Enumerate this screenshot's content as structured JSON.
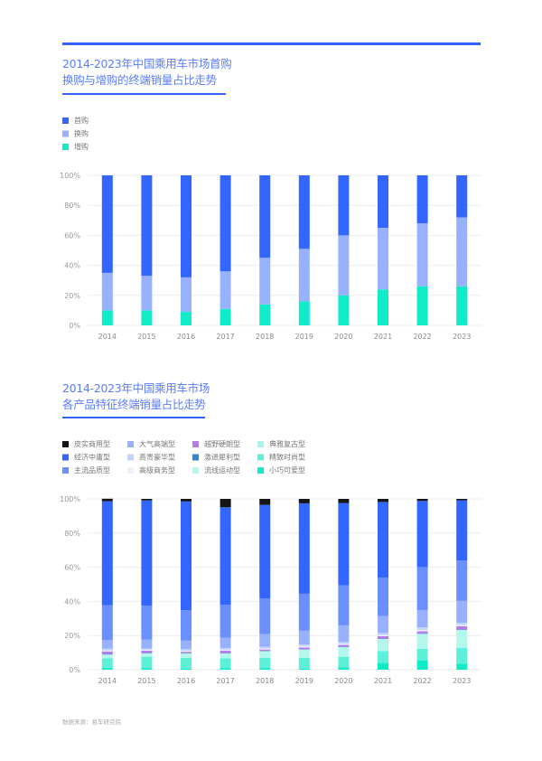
{
  "chart_data": [
    {
      "type": "bar",
      "stacked": true,
      "title": "2014-2023年中国乘用车市场首购换购与增购的终端销量占比走势",
      "title_lines": [
        "2014-2023年中国乘用车市场首购",
        "换购与增购的终端销量占比走势"
      ],
      "categories": [
        "2014",
        "2015",
        "2016",
        "2017",
        "2018",
        "2019",
        "2020",
        "2021",
        "2022",
        "2023"
      ],
      "ylim": [
        0,
        100
      ],
      "yticks": [
        "0%",
        "20%",
        "40%",
        "60%",
        "80%",
        "100%"
      ],
      "grid": true,
      "legend_position": "top-left",
      "series": [
        {
          "name": "增购",
          "color": "#10ecc8",
          "values": [
            10,
            10,
            9,
            11,
            14,
            16,
            20,
            24,
            26,
            26
          ]
        },
        {
          "name": "换购",
          "color": "#98b1ff",
          "values": [
            25,
            23,
            23,
            25,
            31,
            35,
            40,
            41,
            42,
            46
          ]
        },
        {
          "name": "首购",
          "color": "#3366ff",
          "values": [
            65,
            67,
            68,
            64,
            55,
            49,
            40,
            35,
            32,
            28
          ]
        }
      ],
      "legend_order": [
        "首购",
        "换购",
        "增购"
      ]
    },
    {
      "type": "bar",
      "stacked": true,
      "title": "2014-2023年中国乘用车市场各产品特征终端销量占比走势",
      "title_lines": [
        "2014-2023年中国乘用车市场",
        "各产品特征终端销量占比走势"
      ],
      "categories": [
        "2014",
        "2015",
        "2016",
        "2017",
        "2018",
        "2019",
        "2020",
        "2021",
        "2022",
        "2023"
      ],
      "ylim": [
        0,
        100
      ],
      "yticks": [
        "0%",
        "20%",
        "40%",
        "60%",
        "80%",
        "100%"
      ],
      "grid": true,
      "legend_position": "top-left",
      "series": [
        {
          "name": "小巧可爱型",
          "color": "#10ecc8",
          "values": [
            1.2,
            1.0,
            0.7,
            1.0,
            1.0,
            0.7,
            1.3,
            4.0,
            5.5,
            3.5
          ]
        },
        {
          "name": "精致时尚型",
          "color": "#5cf0d8",
          "values": [
            5.5,
            6.6,
            6.2,
            5.6,
            6.0,
            6.3,
            6.3,
            7.0,
            6.8,
            9.3
          ]
        },
        {
          "name": "流线运动型",
          "color": "#b4f7ec",
          "values": [
            2.2,
            2.0,
            2.6,
            3.0,
            3.8,
            4.8,
            5.7,
            7.0,
            8.7,
            10.5
          ]
        },
        {
          "name": "典雅复古型",
          "color": "#a6f5e8",
          "values": [
            0,
            0,
            0,
            0,
            0,
            0,
            0,
            0,
            0,
            0
          ]
        },
        {
          "name": "激进犀利型",
          "color": "#2f88d0",
          "values": [
            0.3,
            0.2,
            0.2,
            0.2,
            0.2,
            0.2,
            0.2,
            0.2,
            0.2,
            0.2
          ]
        },
        {
          "name": "越野硬朗型",
          "color": "#b57be8",
          "values": [
            1.5,
            1.3,
            0.8,
            1.3,
            0.8,
            1.0,
            1.0,
            1.4,
            1.3,
            2.0
          ]
        },
        {
          "name": "高级商务型",
          "color": "#eef1ff",
          "values": [
            0.5,
            0.5,
            0.5,
            0.5,
            0.5,
            0.6,
            0.6,
            0.6,
            0.8,
            0.7
          ]
        },
        {
          "name": "高贵豪华型",
          "color": "#c5d3ff",
          "values": [
            1.1,
            0.8,
            1.0,
            1.1,
            1.1,
            1.2,
            1.1,
            1.3,
            1.5,
            1.3
          ]
        },
        {
          "name": "大气高端型",
          "color": "#98b1ff",
          "values": [
            5.0,
            5.3,
            5.0,
            6.0,
            7.4,
            8.0,
            9.8,
            10.0,
            10.0,
            12.8
          ]
        },
        {
          "name": "主流品质型",
          "color": "#6a8fff",
          "values": [
            20.5,
            19.8,
            17.8,
            19.4,
            21.0,
            21.7,
            23.4,
            22.3,
            25.3,
            23.6
          ]
        },
        {
          "name": "经济中庸型",
          "color": "#3366ff",
          "values": [
            60.9,
            61.6,
            63.7,
            57.0,
            54.7,
            52.9,
            48.2,
            44.4,
            38.7,
            35.3
          ]
        },
        {
          "name": "皮实商用型",
          "color": "#151515",
          "values": [
            1.4,
            0.9,
            1.5,
            4.9,
            3.5,
            2.6,
            2.4,
            1.8,
            1.2,
            0.8
          ]
        }
      ],
      "legend_order": [
        "皮实商用型",
        "经济中庸型",
        "主流品质型",
        "大气高端型",
        "高贵豪华型",
        "高级商务型",
        "越野硬朗型",
        "激进犀利型",
        "流线运动型",
        "典雅复古型",
        "精致时尚型",
        "小巧可爱型"
      ]
    }
  ],
  "source": "数据来源：易车研究院"
}
